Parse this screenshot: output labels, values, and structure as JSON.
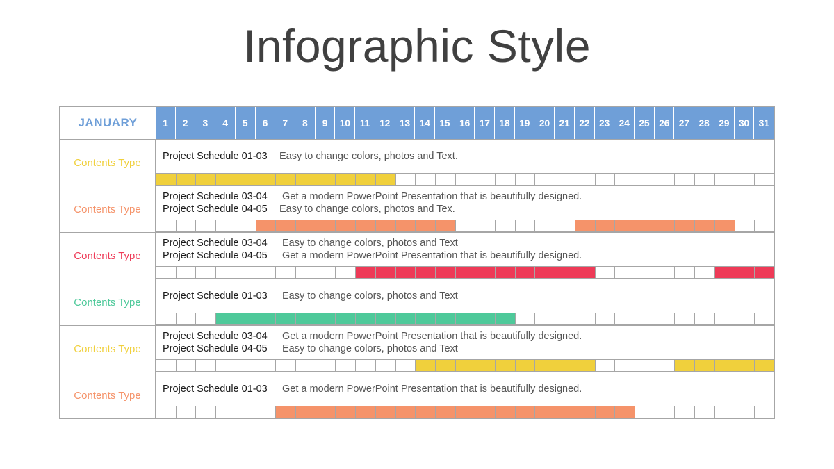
{
  "title": "Infographic Style",
  "month": "JANUARY",
  "days": [
    "1",
    "2",
    "3",
    "4",
    "5",
    "6",
    "7",
    "8",
    "9",
    "10",
    "11",
    "12",
    "13",
    "14",
    "15",
    "16",
    "17",
    "18",
    "19",
    "20",
    "21",
    "22",
    "23",
    "24",
    "25",
    "26",
    "27",
    "28",
    "29",
    "30",
    "31"
  ],
  "colors": {
    "header": "#6f9fd8",
    "month_text": "#6f9fd8",
    "yellow": "#f0d03c",
    "orange": "#f5936a",
    "red": "#ee3a57",
    "green": "#4ec99a"
  },
  "rows": [
    {
      "label": "Contents Type",
      "color": "yellow",
      "lines": [
        {
          "schedule": "Project Schedule 01-03",
          "desc": "Easy to change colors, photos and Text."
        }
      ],
      "filled": [
        [
          1,
          12
        ]
      ]
    },
    {
      "label": "Contents Type",
      "color": "orange",
      "lines": [
        {
          "schedule": "Project Schedule 03-04",
          "desc": "Get a modern PowerPoint  Presentation that is beautifully designed."
        },
        {
          "schedule": "Project Schedule 04-05",
          "desc": "Easy to change colors, photos and Tex."
        }
      ],
      "filled": [
        [
          6,
          15
        ],
        [
          22,
          29
        ]
      ]
    },
    {
      "label": "Contents Type",
      "color": "red",
      "lines": [
        {
          "schedule": "Project Schedule 03-04",
          "desc": "Easy to change colors, photos and Text"
        },
        {
          "schedule": "Project Schedule 04-05",
          "desc": "Get a modern PowerPoint  Presentation that is beautifully designed."
        }
      ],
      "filled": [
        [
          11,
          22
        ],
        [
          29,
          31
        ]
      ]
    },
    {
      "label": "Contents Type",
      "color": "green",
      "lines": [
        {
          "schedule": "Project Schedule 01-03",
          "desc": "Easy to change colors, photos and Text"
        }
      ],
      "filled": [
        [
          4,
          18
        ]
      ]
    },
    {
      "label": "Contents Type",
      "color": "yellow",
      "lines": [
        {
          "schedule": "Project Schedule 03-04",
          "desc": "Get a modern PowerPoint  Presentation that is beautifully designed."
        },
        {
          "schedule": "Project Schedule 04-05",
          "desc": "Easy to change colors, photos and Text"
        }
      ],
      "filled": [
        [
          14,
          22
        ],
        [
          27,
          31
        ]
      ]
    },
    {
      "label": "Contents Type",
      "color": "orange",
      "lines": [
        {
          "schedule": "Project Schedule 01-03",
          "desc": "Get a modern PowerPoint  Presentation that is beautifully designed."
        }
      ],
      "filled": [
        [
          7,
          24
        ]
      ]
    }
  ]
}
